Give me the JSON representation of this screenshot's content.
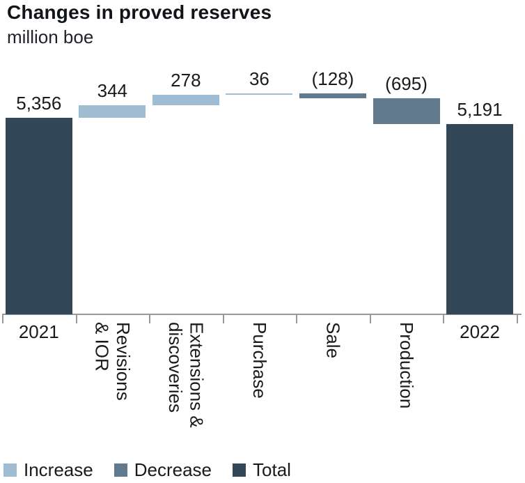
{
  "header": {
    "title": "Changes in proved reserves",
    "subtitle": "million boe"
  },
  "chart_data": {
    "type": "bar",
    "subtype": "waterfall",
    "title": "Changes in proved reserves",
    "unit_label": "million boe",
    "categories": [
      "2021",
      "Revisions & IOR",
      "Extensions & discoveries",
      "Purchase",
      "Sale",
      "Production",
      "2022"
    ],
    "category_lines": [
      [
        "2021"
      ],
      [
        "Revisions",
        "& IOR"
      ],
      [
        "Extensions &",
        "discoveries"
      ],
      [
        "Purchase"
      ],
      [
        "Sale"
      ],
      [
        "Production"
      ],
      [
        "2022"
      ]
    ],
    "rotated_ticks": [
      false,
      true,
      true,
      true,
      true,
      true,
      false
    ],
    "values": [
      5356,
      344,
      278,
      36,
      -128,
      -695,
      5191
    ],
    "value_labels": [
      "5,356",
      "344",
      "278",
      "36",
      "(128)",
      "(695)",
      "5,191"
    ],
    "bar_kinds": [
      "total",
      "increase",
      "increase",
      "increase",
      "decrease",
      "decrease",
      "total"
    ],
    "baseline": 0,
    "ylim": [
      0,
      6014
    ],
    "grid": false,
    "y_axis_shown": false,
    "legend_position": "bottom"
  },
  "legend": {
    "items": [
      {
        "label": "Increase",
        "kind": "increase"
      },
      {
        "label": "Decrease",
        "kind": "decrease"
      },
      {
        "label": "Total",
        "kind": "total"
      }
    ]
  },
  "colors": {
    "increase": "#9ebcd2",
    "decrease": "#627a8d",
    "total": "#324757",
    "axis": "#999999",
    "text": "#1a1a1a",
    "background": "#ffffff"
  }
}
